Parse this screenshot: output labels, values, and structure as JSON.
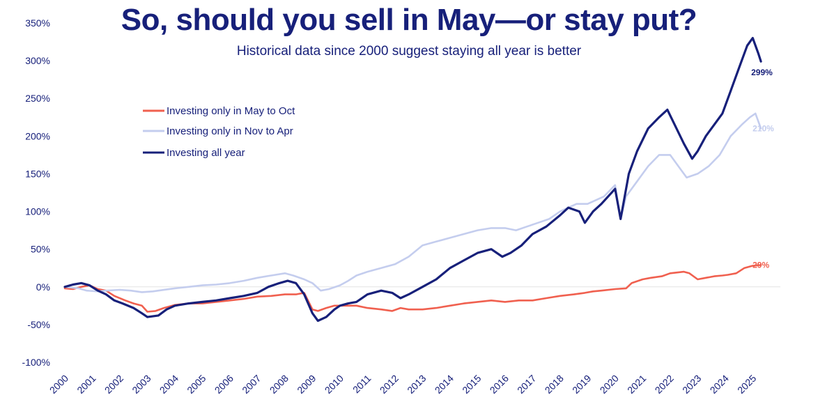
{
  "chart_data": {
    "type": "line",
    "title": "So, should you sell in May—or stay put?",
    "subtitle": "Historical data since 2000 suggest staying all year is better",
    "xlabel": "",
    "ylabel": "",
    "xlim": [
      2000,
      2025.5
    ],
    "ylim": [
      -100,
      350
    ],
    "x_ticks": [
      "2000",
      "2001",
      "2002",
      "2003",
      "2004",
      "2005",
      "2006",
      "2007",
      "2008",
      "2009",
      "2010",
      "2011",
      "2012",
      "2013",
      "2014",
      "2015",
      "2016",
      "2017",
      "2018",
      "2019",
      "2020",
      "2021",
      "2022",
      "2023",
      "2024",
      "2025"
    ],
    "y_ticks": [
      "-100%",
      "-50%",
      "0%",
      "50%",
      "100%",
      "150%",
      "200%",
      "250%",
      "300%",
      "350%"
    ],
    "legend_position": "top-left",
    "series": [
      {
        "name": "Investing only in May to Oct",
        "color": "#f0604f",
        "end_label": "29%",
        "x": [
          2000,
          2000.3,
          2000.6,
          2000.9,
          2001.2,
          2001.5,
          2001.8,
          2002.2,
          2002.5,
          2002.8,
          2003.0,
          2003.3,
          2003.6,
          2004.0,
          2004.5,
          2005.0,
          2005.5,
          2006.0,
          2006.5,
          2007.0,
          2007.5,
          2008.0,
          2008.4,
          2008.7,
          2009.0,
          2009.2,
          2009.5,
          2009.8,
          2010.0,
          2010.3,
          2010.6,
          2011.0,
          2011.5,
          2011.9,
          2012.2,
          2012.5,
          2013.0,
          2013.5,
          2014.0,
          2014.5,
          2015.0,
          2015.5,
          2016.0,
          2016.5,
          2017.0,
          2017.5,
          2018.0,
          2018.5,
          2018.9,
          2019.2,
          2019.5,
          2020.0,
          2020.4,
          2020.6,
          2021.0,
          2021.3,
          2021.7,
          2022.0,
          2022.5,
          2022.7,
          2023.0,
          2023.3,
          2023.6,
          2023.9,
          2024.1,
          2024.4,
          2024.7,
          2025.0,
          2025.3
        ],
        "values": [
          -2,
          -3,
          0,
          2,
          -3,
          -5,
          -12,
          -18,
          -22,
          -25,
          -33,
          -32,
          -28,
          -24,
          -22,
          -22,
          -20,
          -18,
          -16,
          -13,
          -12,
          -10,
          -10,
          -8,
          -30,
          -32,
          -28,
          -25,
          -25,
          -25,
          -25,
          -28,
          -30,
          -32,
          -28,
          -30,
          -30,
          -28,
          -25,
          -22,
          -20,
          -18,
          -20,
          -18,
          -18,
          -15,
          -12,
          -10,
          -8,
          -6,
          -5,
          -3,
          -2,
          5,
          10,
          12,
          14,
          18,
          20,
          18,
          10,
          12,
          14,
          15,
          16,
          18,
          25,
          28,
          29
        ]
      },
      {
        "name": "Investing only in Nov to Apr",
        "color": "#c4cdee",
        "end_label": "210%",
        "x": [
          2000,
          2000.5,
          2000.8,
          2001.2,
          2001.5,
          2002.0,
          2002.4,
          2002.8,
          2003.2,
          2003.6,
          2004.0,
          2004.5,
          2005.0,
          2005.5,
          2006.0,
          2006.5,
          2007.0,
          2007.5,
          2008.0,
          2008.3,
          2008.7,
          2009.0,
          2009.3,
          2009.6,
          2010.0,
          2010.3,
          2010.6,
          2011.0,
          2011.5,
          2012.0,
          2012.5,
          2013.0,
          2013.5,
          2014.0,
          2014.5,
          2015.0,
          2015.5,
          2016.0,
          2016.4,
          2016.8,
          2017.2,
          2017.6,
          2018.0,
          2018.3,
          2018.6,
          2019.0,
          2019.3,
          2019.6,
          2020.0,
          2020.2,
          2020.4,
          2020.8,
          2021.2,
          2021.6,
          2022.0,
          2022.3,
          2022.6,
          2023.0,
          2023.4,
          2023.8,
          2024.2,
          2024.6,
          2024.9,
          2025.1,
          2025.3
        ],
        "values": [
          0,
          -2,
          -5,
          -6,
          -5,
          -4,
          -5,
          -7,
          -6,
          -4,
          -2,
          0,
          2,
          3,
          5,
          8,
          12,
          15,
          18,
          15,
          10,
          5,
          -5,
          -3,
          2,
          8,
          15,
          20,
          25,
          30,
          40,
          55,
          60,
          65,
          70,
          75,
          78,
          78,
          75,
          80,
          85,
          90,
          100,
          105,
          110,
          110,
          115,
          120,
          135,
          90,
          120,
          140,
          160,
          175,
          175,
          160,
          145,
          150,
          160,
          175,
          200,
          215,
          225,
          230,
          210
        ]
      },
      {
        "name": "Investing all year",
        "color": "#17207a",
        "end_label": "299%",
        "x": [
          2000,
          2000.3,
          2000.6,
          2000.9,
          2001.2,
          2001.5,
          2001.8,
          2002.1,
          2002.5,
          2002.8,
          2003.0,
          2003.4,
          2003.7,
          2004.0,
          2004.5,
          2005.0,
          2005.5,
          2006.0,
          2006.5,
          2007.0,
          2007.4,
          2007.8,
          2008.1,
          2008.4,
          2008.7,
          2009.0,
          2009.2,
          2009.5,
          2009.8,
          2010.0,
          2010.3,
          2010.6,
          2011.0,
          2011.5,
          2011.9,
          2012.2,
          2012.5,
          2013.0,
          2013.5,
          2014.0,
          2014.5,
          2015.0,
          2015.5,
          2015.9,
          2016.2,
          2016.6,
          2017.0,
          2017.5,
          2018.0,
          2018.3,
          2018.7,
          2018.9,
          2019.2,
          2019.5,
          2020.0,
          2020.2,
          2020.5,
          2020.8,
          2021.2,
          2021.6,
          2021.9,
          2022.1,
          2022.5,
          2022.8,
          2023.0,
          2023.3,
          2023.6,
          2023.9,
          2024.2,
          2024.5,
          2024.8,
          2025.0,
          2025.2,
          2025.3
        ],
        "values": [
          0,
          3,
          5,
          2,
          -5,
          -10,
          -18,
          -22,
          -28,
          -35,
          -40,
          -38,
          -30,
          -25,
          -22,
          -20,
          -18,
          -15,
          -12,
          -8,
          0,
          5,
          8,
          5,
          -10,
          -35,
          -45,
          -40,
          -30,
          -25,
          -22,
          -20,
          -10,
          -5,
          -8,
          -15,
          -10,
          0,
          10,
          25,
          35,
          45,
          50,
          40,
          45,
          55,
          70,
          80,
          95,
          105,
          100,
          85,
          100,
          110,
          130,
          90,
          150,
          180,
          210,
          225,
          235,
          220,
          190,
          170,
          180,
          200,
          215,
          230,
          260,
          290,
          320,
          330,
          310,
          299
        ]
      }
    ]
  }
}
